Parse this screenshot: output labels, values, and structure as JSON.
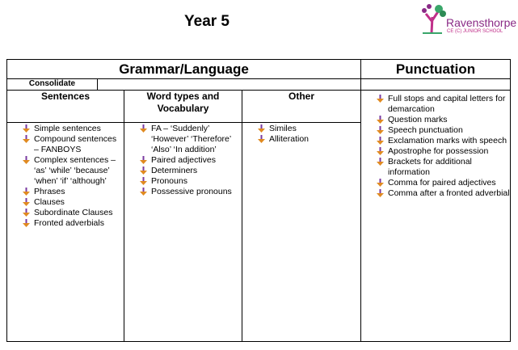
{
  "title": "Year 5",
  "logo": {
    "name": "Ravensthorpe",
    "sub": "CE (C) JUNIOR SCHOOL"
  },
  "headers": {
    "grammar": "Grammar/Language",
    "punctuation": "Punctuation",
    "consolidate": "Consolidate"
  },
  "columns": [
    {
      "heading": "Sentences",
      "items": [
        "Simple sentences",
        "Compound sentences – FANBOYS",
        "Complex sentences – ‘as’ ‘while’ ‘because’ ‘when’ ‘if’ ‘although’",
        "Phrases",
        "Clauses",
        "Subordinate Clauses",
        "Fronted adverbials"
      ]
    },
    {
      "heading": "Word types and Vocabulary",
      "items": [
        "FA  – ‘Suddenly’ ‘However’ ‘Therefore’ ‘Also’ ‘In addition’",
        "Paired adjectives",
        "Determiners",
        "Pronouns",
        "Possessive pronouns"
      ]
    },
    {
      "heading": "Other",
      "items": [
        "Similes",
        "Alliteration"
      ]
    }
  ],
  "punctuation_items": [
    "Full stops and capital letters for demarcation",
    "Question marks",
    "Speech punctuation",
    "Exclamation marks with speech",
    "Apostrophe for possession",
    "Brackets for additional information",
    "Comma for paired adjectives",
    "Comma after a fronted adverbial"
  ]
}
